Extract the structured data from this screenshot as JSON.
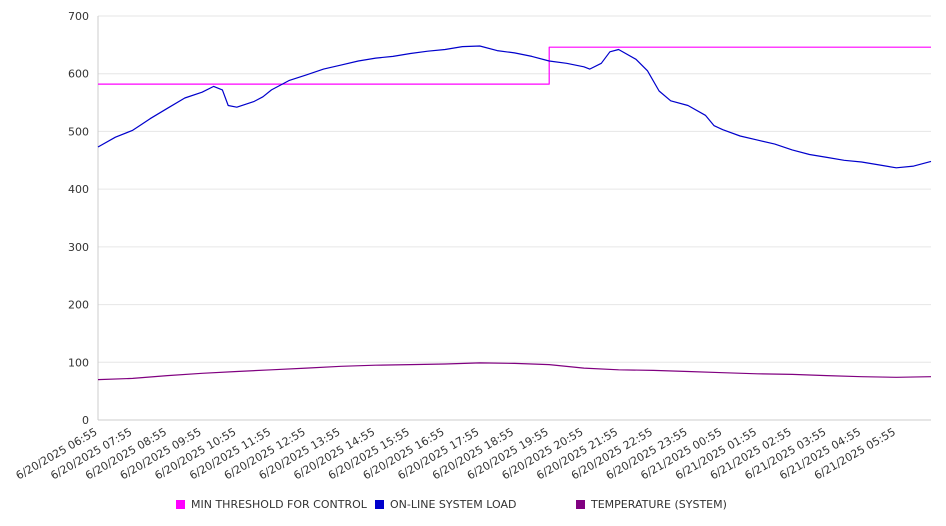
{
  "chart_data": {
    "type": "line",
    "title": "",
    "xlabel": "",
    "ylabel": "",
    "ylim": [
      0,
      700
    ],
    "yticks": [
      0,
      100,
      200,
      300,
      400,
      500,
      600,
      700
    ],
    "grid": true,
    "legend_position": "bottom",
    "x_ticks": [
      "6/20/2025 06:55",
      "6/20/2025 07:55",
      "6/20/2025 08:55",
      "6/20/2025 09:55",
      "6/20/2025 10:55",
      "6/20/2025 11:55",
      "6/20/2025 12:55",
      "6/20/2025 13:55",
      "6/20/2025 14:55",
      "6/20/2025 15:55",
      "6/20/2025 16:55",
      "6/20/2025 17:55",
      "6/20/2025 18:55",
      "6/20/2025 19:55",
      "6/20/2025 20:55",
      "6/20/2025 21:55",
      "6/20/2025 22:55",
      "6/20/2025 23:55",
      "6/21/2025 00:55",
      "6/21/2025 01:55",
      "6/21/2025 02:55",
      "6/21/2025 03:55",
      "6/21/2025 04:55",
      "6/21/2025 05:55"
    ],
    "series": [
      {
        "name": "MIN THRESHOLD FOR CONTROL",
        "color": "#ff00ff",
        "points": [
          [
            "6/20/2025 06:55",
            582
          ],
          [
            "6/20/2025 19:55",
            582
          ],
          [
            "6/20/2025 19:55",
            646
          ],
          [
            "6/21/2025 06:55",
            646
          ]
        ]
      },
      {
        "name": "ON-LINE SYSTEM LOAD",
        "color": "#0000cc",
        "points": [
          [
            "6/20/2025 06:55",
            473
          ],
          [
            "6/20/2025 07:25",
            490
          ],
          [
            "6/20/2025 07:55",
            502
          ],
          [
            "6/20/2025 08:25",
            522
          ],
          [
            "6/20/2025 08:55",
            540
          ],
          [
            "6/20/2025 09:25",
            558
          ],
          [
            "6/20/2025 09:55",
            568
          ],
          [
            "6/20/2025 10:15",
            578
          ],
          [
            "6/20/2025 10:30",
            572
          ],
          [
            "6/20/2025 10:40",
            545
          ],
          [
            "6/20/2025 10:55",
            542
          ],
          [
            "6/20/2025 11:25",
            552
          ],
          [
            "6/20/2025 11:40",
            560
          ],
          [
            "6/20/2025 11:55",
            572
          ],
          [
            "6/20/2025 12:25",
            588
          ],
          [
            "6/20/2025 12:55",
            598
          ],
          [
            "6/20/2025 13:25",
            608
          ],
          [
            "6/20/2025 13:55",
            615
          ],
          [
            "6/20/2025 14:25",
            622
          ],
          [
            "6/20/2025 14:55",
            627
          ],
          [
            "6/20/2025 15:25",
            630
          ],
          [
            "6/20/2025 15:55",
            635
          ],
          [
            "6/20/2025 16:25",
            639
          ],
          [
            "6/20/2025 16:55",
            642
          ],
          [
            "6/20/2025 17:25",
            647
          ],
          [
            "6/20/2025 17:55",
            648
          ],
          [
            "6/20/2025 18:25",
            640
          ],
          [
            "6/20/2025 18:55",
            636
          ],
          [
            "6/20/2025 19:25",
            630
          ],
          [
            "6/20/2025 19:55",
            622
          ],
          [
            "6/20/2025 20:25",
            618
          ],
          [
            "6/20/2025 20:55",
            612
          ],
          [
            "6/20/2025 21:05",
            608
          ],
          [
            "6/20/2025 21:25",
            618
          ],
          [
            "6/20/2025 21:40",
            638
          ],
          [
            "6/20/2025 21:55",
            642
          ],
          [
            "6/20/2025 22:25",
            625
          ],
          [
            "6/20/2025 22:45",
            605
          ],
          [
            "6/20/2025 23:05",
            570
          ],
          [
            "6/20/2025 23:25",
            553
          ],
          [
            "6/20/2025 23:55",
            545
          ],
          [
            "6/21/2025 00:25",
            528
          ],
          [
            "6/21/2025 00:40",
            510
          ],
          [
            "6/21/2025 00:55",
            503
          ],
          [
            "6/21/2025 01:25",
            492
          ],
          [
            "6/21/2025 01:55",
            485
          ],
          [
            "6/21/2025 02:25",
            478
          ],
          [
            "6/21/2025 02:55",
            468
          ],
          [
            "6/21/2025 03:25",
            460
          ],
          [
            "6/21/2025 03:55",
            455
          ],
          [
            "6/21/2025 04:25",
            450
          ],
          [
            "6/21/2025 04:55",
            447
          ],
          [
            "6/21/2025 05:25",
            442
          ],
          [
            "6/21/2025 05:55",
            437
          ],
          [
            "6/21/2025 06:25",
            440
          ],
          [
            "6/21/2025 06:55",
            448
          ]
        ]
      },
      {
        "name": "TEMPERATURE (SYSTEM)",
        "color": "#800080",
        "points": [
          [
            "6/20/2025 06:55",
            70
          ],
          [
            "6/20/2025 07:55",
            72
          ],
          [
            "6/20/2025 08:55",
            77
          ],
          [
            "6/20/2025 09:55",
            81
          ],
          [
            "6/20/2025 10:55",
            84
          ],
          [
            "6/20/2025 11:55",
            87
          ],
          [
            "6/20/2025 12:55",
            90
          ],
          [
            "6/20/2025 13:55",
            93
          ],
          [
            "6/20/2025 14:55",
            95
          ],
          [
            "6/20/2025 15:55",
            96
          ],
          [
            "6/20/2025 16:55",
            97
          ],
          [
            "6/20/2025 17:55",
            99
          ],
          [
            "6/20/2025 18:55",
            98
          ],
          [
            "6/20/2025 19:55",
            96
          ],
          [
            "6/20/2025 20:55",
            90
          ],
          [
            "6/20/2025 21:55",
            87
          ],
          [
            "6/20/2025 22:55",
            86
          ],
          [
            "6/20/2025 23:55",
            84
          ],
          [
            "6/21/2025 00:55",
            82
          ],
          [
            "6/21/2025 01:55",
            80
          ],
          [
            "6/21/2025 02:55",
            79
          ],
          [
            "6/21/2025 03:55",
            77
          ],
          [
            "6/21/2025 04:55",
            75
          ],
          [
            "6/21/2025 05:55",
            74
          ],
          [
            "6/21/2025 06:55",
            75
          ]
        ]
      }
    ]
  }
}
